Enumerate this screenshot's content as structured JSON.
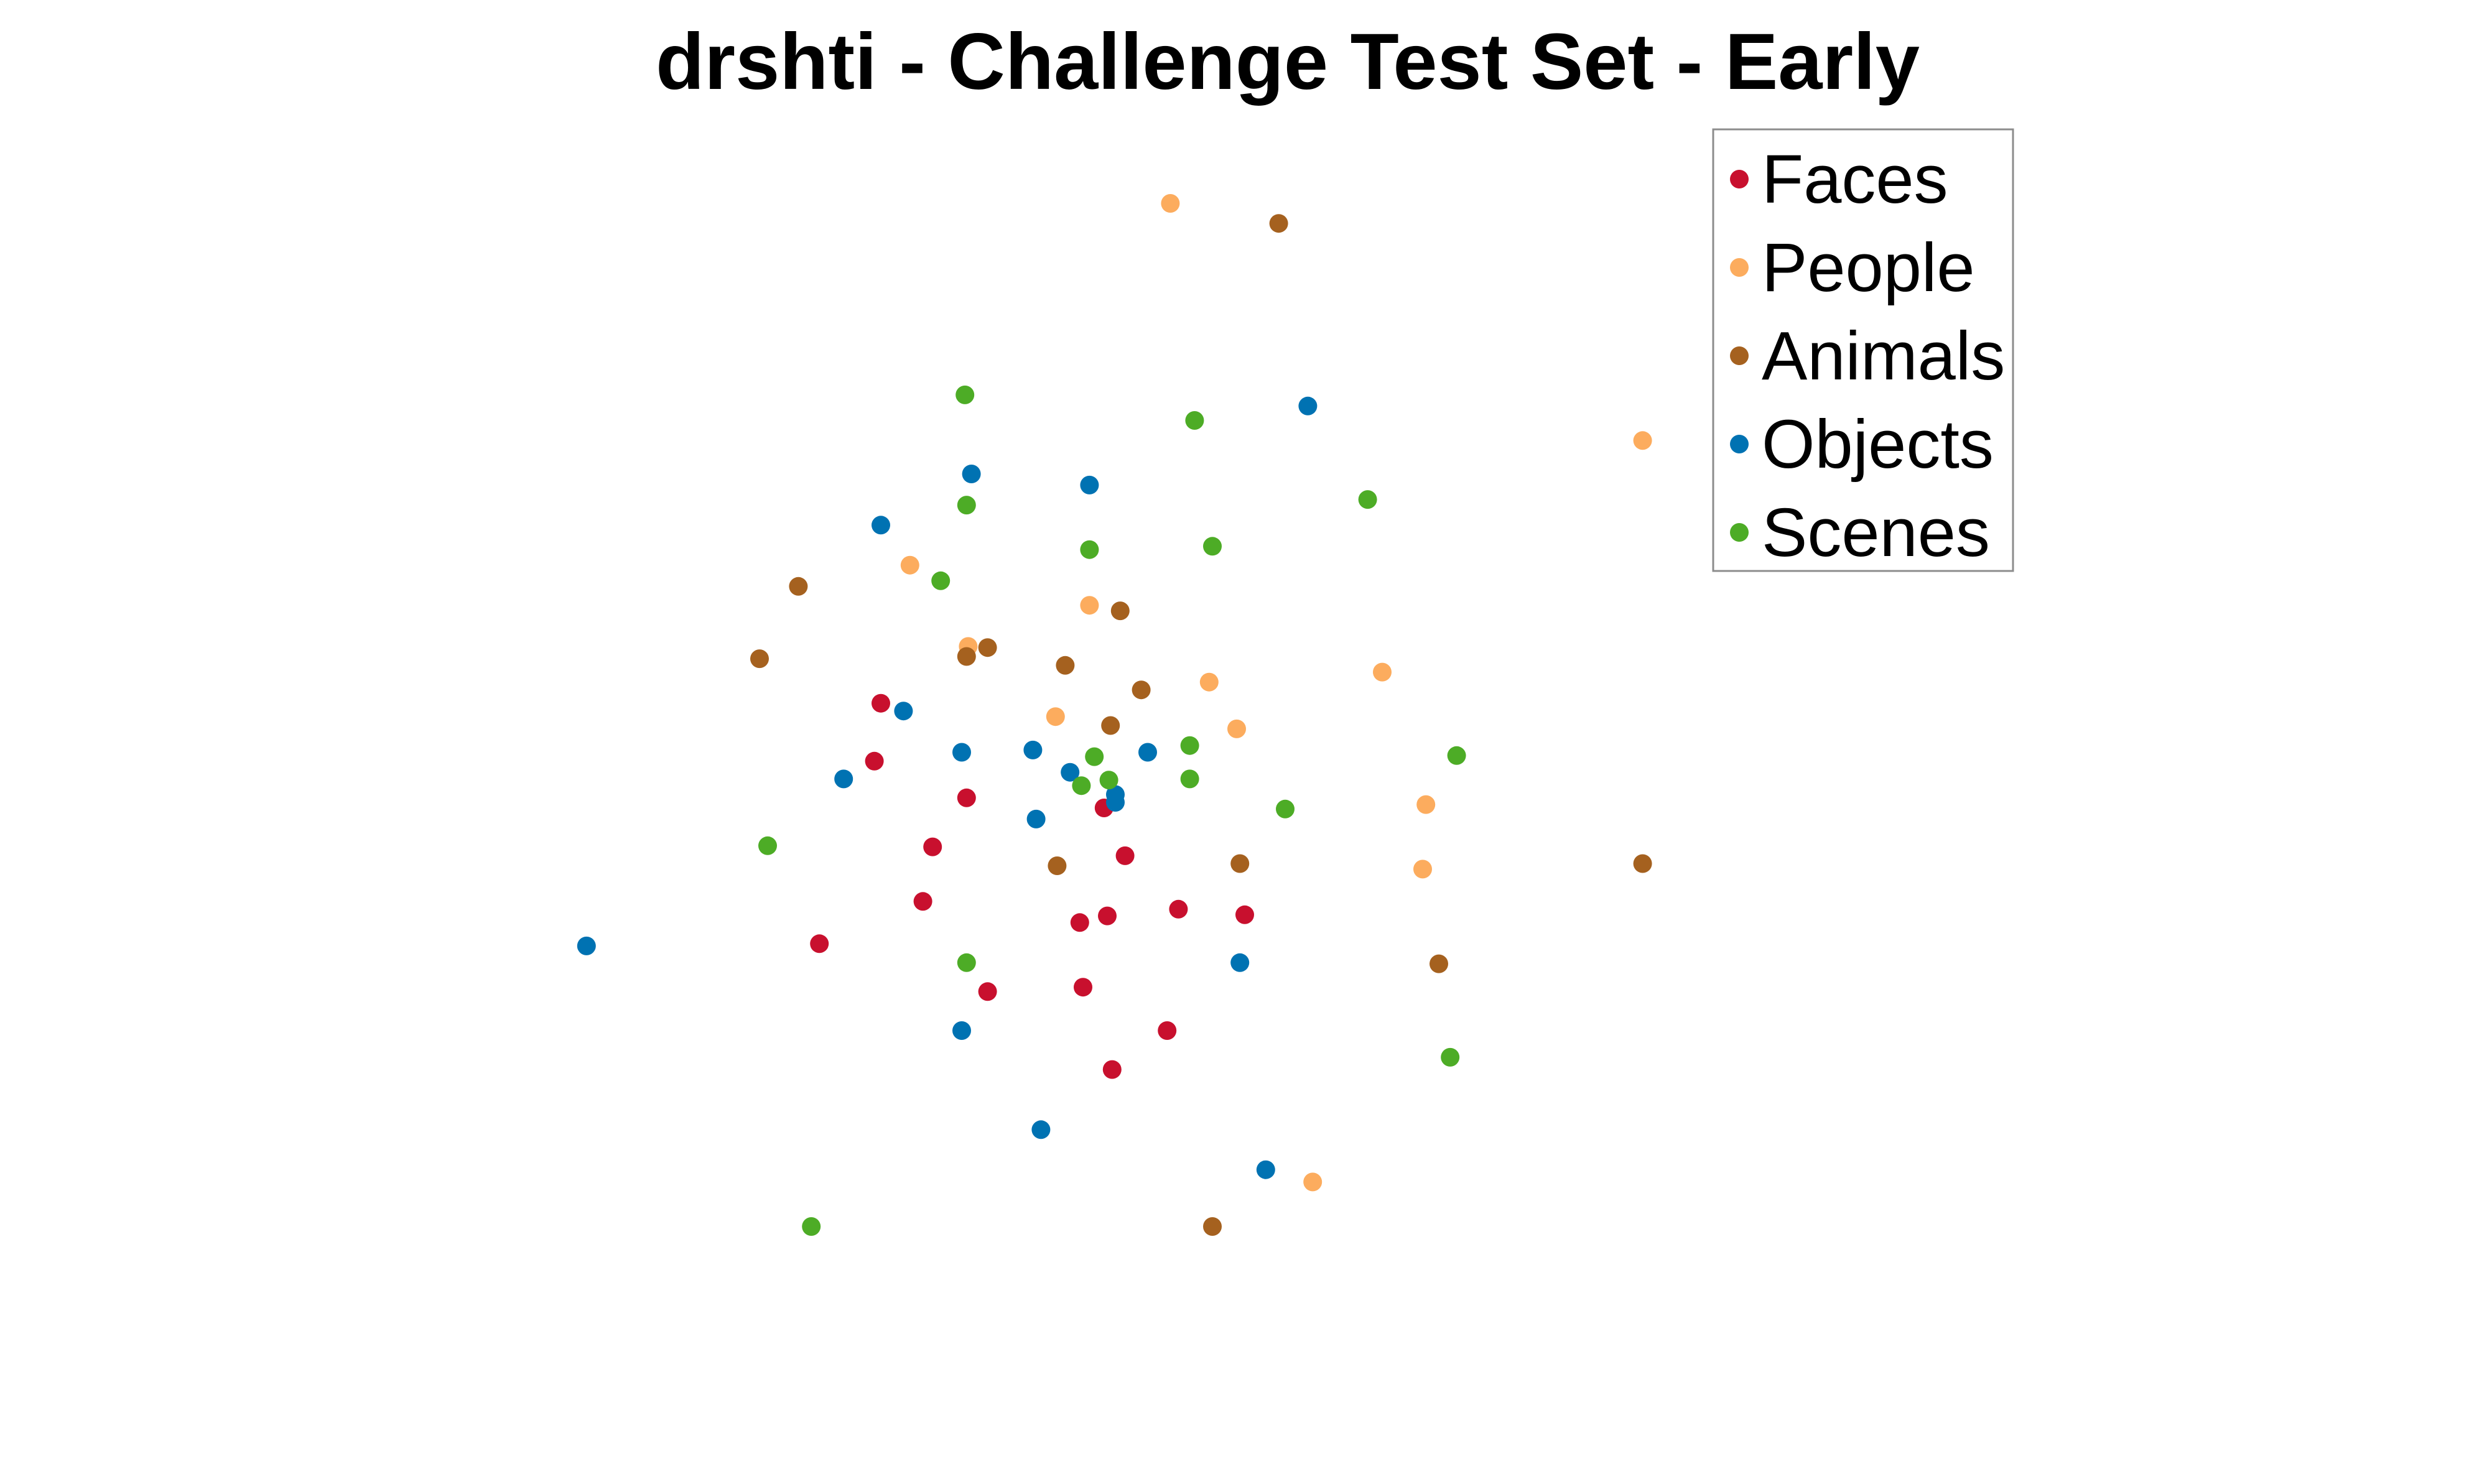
{
  "chart_data": {
    "type": "scatter",
    "title": "drshti - Challenge Test Set - Early",
    "xlabel": "",
    "ylabel": "",
    "axes_visible": false,
    "grid": false,
    "legend_position": "top-right",
    "xlim": [
      0,
      100
    ],
    "ylim": [
      0,
      100
    ],
    "series": [
      {
        "name": "Faces",
        "color": "#c8102e",
        "points": [
          {
            "x": 26.0,
            "y": 57.0
          },
          {
            "x": 25.6,
            "y": 51.8
          },
          {
            "x": 31.3,
            "y": 48.5
          },
          {
            "x": 29.2,
            "y": 44.1
          },
          {
            "x": 28.6,
            "y": 39.2
          },
          {
            "x": 22.2,
            "y": 35.4
          },
          {
            "x": 39.8,
            "y": 47.6
          },
          {
            "x": 41.1,
            "y": 43.3
          },
          {
            "x": 38.3,
            "y": 37.3
          },
          {
            "x": 40.0,
            "y": 37.9
          },
          {
            "x": 44.4,
            "y": 38.5
          },
          {
            "x": 48.5,
            "y": 38.0
          },
          {
            "x": 32.6,
            "y": 31.1
          },
          {
            "x": 38.5,
            "y": 31.5
          },
          {
            "x": 43.7,
            "y": 27.6
          },
          {
            "x": 40.3,
            "y": 24.1
          }
        ]
      },
      {
        "name": "People",
        "color": "#fcac5e",
        "points": [
          {
            "x": 43.9,
            "y": 101.9
          },
          {
            "x": 27.8,
            "y": 69.4
          },
          {
            "x": 38.9,
            "y": 65.8
          },
          {
            "x": 31.4,
            "y": 62.1
          },
          {
            "x": 36.8,
            "y": 55.8
          },
          {
            "x": 46.3,
            "y": 58.9
          },
          {
            "x": 48.0,
            "y": 54.7
          },
          {
            "x": 57.0,
            "y": 59.8
          },
          {
            "x": 59.7,
            "y": 47.9
          },
          {
            "x": 59.5,
            "y": 42.1
          },
          {
            "x": 73.1,
            "y": 80.6
          },
          {
            "x": 52.7,
            "y": 14.0
          }
        ]
      },
      {
        "name": "Animals",
        "color": "#a5611f",
        "points": [
          {
            "x": 50.6,
            "y": 100.1
          },
          {
            "x": 20.9,
            "y": 67.5
          },
          {
            "x": 40.8,
            "y": 65.3
          },
          {
            "x": 18.5,
            "y": 61.0
          },
          {
            "x": 31.3,
            "y": 61.2
          },
          {
            "x": 32.6,
            "y": 62.0
          },
          {
            "x": 37.4,
            "y": 60.4
          },
          {
            "x": 42.1,
            "y": 58.2
          },
          {
            "x": 40.2,
            "y": 55.0
          },
          {
            "x": 36.9,
            "y": 42.4
          },
          {
            "x": 48.2,
            "y": 42.6
          },
          {
            "x": 73.1,
            "y": 42.6
          },
          {
            "x": 60.5,
            "y": 33.6
          },
          {
            "x": 46.5,
            "y": 10.0
          }
        ]
      },
      {
        "name": "Objects",
        "color": "#0072b2",
        "points": [
          {
            "x": 52.4,
            "y": 83.7
          },
          {
            "x": 31.6,
            "y": 77.6
          },
          {
            "x": 26.0,
            "y": 73.0
          },
          {
            "x": 38.9,
            "y": 76.6
          },
          {
            "x": 27.4,
            "y": 56.3
          },
          {
            "x": 31.0,
            "y": 52.6
          },
          {
            "x": 35.4,
            "y": 52.8
          },
          {
            "x": 37.7,
            "y": 50.8
          },
          {
            "x": 23.7,
            "y": 50.2
          },
          {
            "x": 42.5,
            "y": 52.6
          },
          {
            "x": 40.5,
            "y": 48.8
          },
          {
            "x": 40.5,
            "y": 48.1
          },
          {
            "x": 35.6,
            "y": 46.6
          },
          {
            "x": 7.8,
            "y": 35.2
          },
          {
            "x": 48.2,
            "y": 33.7
          },
          {
            "x": 31.0,
            "y": 27.6
          },
          {
            "x": 35.9,
            "y": 18.7
          },
          {
            "x": 49.8,
            "y": 15.1
          }
        ]
      },
      {
        "name": "Scenes",
        "color": "#4dac26",
        "points": [
          {
            "x": 31.2,
            "y": 84.7
          },
          {
            "x": 45.4,
            "y": 82.4
          },
          {
            "x": 31.3,
            "y": 74.8
          },
          {
            "x": 56.1,
            "y": 75.3
          },
          {
            "x": 29.7,
            "y": 68.0
          },
          {
            "x": 38.9,
            "y": 70.8
          },
          {
            "x": 46.5,
            "y": 71.1
          },
          {
            "x": 45.1,
            "y": 53.2
          },
          {
            "x": 39.2,
            "y": 52.2
          },
          {
            "x": 40.1,
            "y": 50.1
          },
          {
            "x": 38.4,
            "y": 49.6
          },
          {
            "x": 45.1,
            "y": 50.2
          },
          {
            "x": 61.6,
            "y": 52.3
          },
          {
            "x": 51.0,
            "y": 47.5
          },
          {
            "x": 19.0,
            "y": 44.2
          },
          {
            "x": 31.3,
            "y": 33.7
          },
          {
            "x": 61.2,
            "y": 25.2
          },
          {
            "x": 21.7,
            "y": 10.0
          }
        ]
      }
    ]
  }
}
